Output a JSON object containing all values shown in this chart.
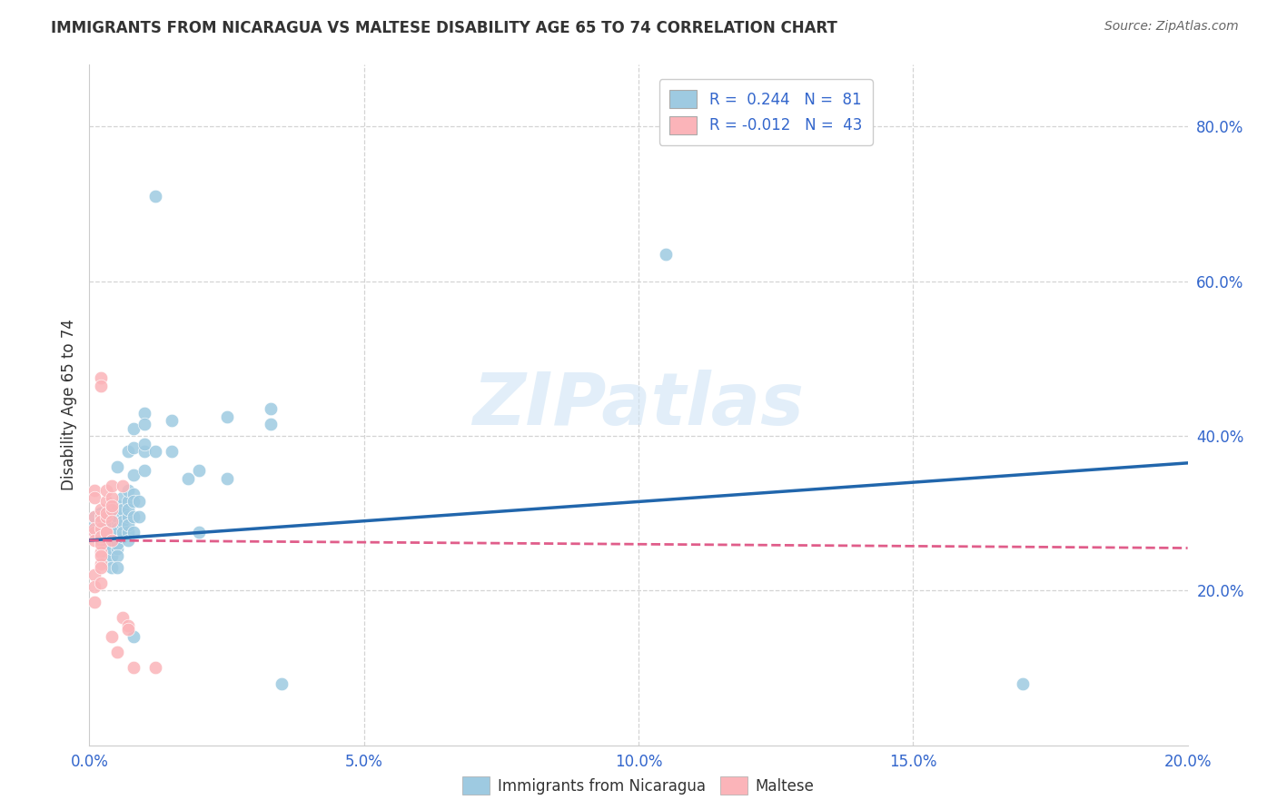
{
  "title": "IMMIGRANTS FROM NICARAGUA VS MALTESE DISABILITY AGE 65 TO 74 CORRELATION CHART",
  "source": "Source: ZipAtlas.com",
  "ylabel_label": "Disability Age 65 to 74",
  "xmin": 0.0,
  "xmax": 0.2,
  "ymin": 0.0,
  "ymax": 0.88,
  "xtick_labels": [
    "0.0%",
    "",
    "",
    "",
    "",
    "5.0%",
    "",
    "",
    "",
    "",
    "10.0%",
    "",
    "",
    "",
    "",
    "15.0%",
    "",
    "",
    "",
    "",
    "20.0%"
  ],
  "xtick_values": [
    0.0,
    0.01,
    0.02,
    0.03,
    0.04,
    0.05,
    0.06,
    0.07,
    0.08,
    0.09,
    0.1,
    0.11,
    0.12,
    0.13,
    0.14,
    0.15,
    0.16,
    0.17,
    0.18,
    0.19,
    0.2
  ],
  "ytick_labels": [
    "20.0%",
    "40.0%",
    "60.0%",
    "80.0%"
  ],
  "ytick_values": [
    0.2,
    0.4,
    0.6,
    0.8
  ],
  "watermark": "ZIPatlas",
  "blue_color": "#9ecae1",
  "pink_color": "#fbb4b9",
  "blue_line_color": "#2166ac",
  "pink_line_color": "#e05d8a",
  "blue_scatter": [
    [
      0.001,
      0.285
    ],
    [
      0.001,
      0.295
    ],
    [
      0.001,
      0.275
    ],
    [
      0.002,
      0.3
    ],
    [
      0.002,
      0.28
    ],
    [
      0.002,
      0.265
    ],
    [
      0.002,
      0.3
    ],
    [
      0.002,
      0.285
    ],
    [
      0.002,
      0.27
    ],
    [
      0.003,
      0.295
    ],
    [
      0.003,
      0.285
    ],
    [
      0.003,
      0.27
    ],
    [
      0.003,
      0.26
    ],
    [
      0.003,
      0.3
    ],
    [
      0.003,
      0.29
    ],
    [
      0.003,
      0.28
    ],
    [
      0.003,
      0.26
    ],
    [
      0.003,
      0.24
    ],
    [
      0.004,
      0.295
    ],
    [
      0.004,
      0.28
    ],
    [
      0.004,
      0.265
    ],
    [
      0.004,
      0.245
    ],
    [
      0.004,
      0.23
    ],
    [
      0.004,
      0.3
    ],
    [
      0.004,
      0.285
    ],
    [
      0.004,
      0.27
    ],
    [
      0.004,
      0.255
    ],
    [
      0.005,
      0.295
    ],
    [
      0.005,
      0.285
    ],
    [
      0.005,
      0.27
    ],
    [
      0.005,
      0.255
    ],
    [
      0.005,
      0.36
    ],
    [
      0.005,
      0.31
    ],
    [
      0.005,
      0.295
    ],
    [
      0.005,
      0.28
    ],
    [
      0.005,
      0.26
    ],
    [
      0.005,
      0.245
    ],
    [
      0.005,
      0.23
    ],
    [
      0.006,
      0.32
    ],
    [
      0.006,
      0.3
    ],
    [
      0.006,
      0.285
    ],
    [
      0.006,
      0.27
    ],
    [
      0.006,
      0.305
    ],
    [
      0.006,
      0.29
    ],
    [
      0.006,
      0.275
    ],
    [
      0.007,
      0.315
    ],
    [
      0.007,
      0.295
    ],
    [
      0.007,
      0.275
    ],
    [
      0.007,
      0.38
    ],
    [
      0.007,
      0.33
    ],
    [
      0.007,
      0.305
    ],
    [
      0.007,
      0.285
    ],
    [
      0.007,
      0.265
    ],
    [
      0.008,
      0.35
    ],
    [
      0.008,
      0.325
    ],
    [
      0.008,
      0.295
    ],
    [
      0.008,
      0.275
    ],
    [
      0.008,
      0.14
    ],
    [
      0.008,
      0.41
    ],
    [
      0.008,
      0.385
    ],
    [
      0.008,
      0.315
    ],
    [
      0.009,
      0.315
    ],
    [
      0.009,
      0.295
    ],
    [
      0.01,
      0.43
    ],
    [
      0.01,
      0.415
    ],
    [
      0.01,
      0.38
    ],
    [
      0.01,
      0.355
    ],
    [
      0.01,
      0.39
    ],
    [
      0.012,
      0.71
    ],
    [
      0.012,
      0.38
    ],
    [
      0.015,
      0.42
    ],
    [
      0.015,
      0.38
    ],
    [
      0.018,
      0.345
    ],
    [
      0.02,
      0.355
    ],
    [
      0.02,
      0.275
    ],
    [
      0.025,
      0.425
    ],
    [
      0.025,
      0.345
    ],
    [
      0.033,
      0.435
    ],
    [
      0.033,
      0.415
    ],
    [
      0.035,
      0.08
    ],
    [
      0.105,
      0.635
    ],
    [
      0.17,
      0.08
    ]
  ],
  "pink_scatter": [
    [
      0.001,
      0.33
    ],
    [
      0.001,
      0.275
    ],
    [
      0.001,
      0.32
    ],
    [
      0.001,
      0.295
    ],
    [
      0.001,
      0.28
    ],
    [
      0.001,
      0.265
    ],
    [
      0.001,
      0.22
    ],
    [
      0.001,
      0.205
    ],
    [
      0.001,
      0.185
    ],
    [
      0.002,
      0.295
    ],
    [
      0.002,
      0.28
    ],
    [
      0.002,
      0.265
    ],
    [
      0.002,
      0.25
    ],
    [
      0.002,
      0.235
    ],
    [
      0.002,
      0.21
    ],
    [
      0.002,
      0.475
    ],
    [
      0.002,
      0.465
    ],
    [
      0.002,
      0.305
    ],
    [
      0.002,
      0.29
    ],
    [
      0.002,
      0.27
    ],
    [
      0.002,
      0.26
    ],
    [
      0.002,
      0.245
    ],
    [
      0.002,
      0.23
    ],
    [
      0.003,
      0.315
    ],
    [
      0.003,
      0.295
    ],
    [
      0.003,
      0.275
    ],
    [
      0.003,
      0.33
    ],
    [
      0.003,
      0.3
    ],
    [
      0.003,
      0.275
    ],
    [
      0.004,
      0.32
    ],
    [
      0.004,
      0.305
    ],
    [
      0.004,
      0.29
    ],
    [
      0.004,
      0.265
    ],
    [
      0.004,
      0.335
    ],
    [
      0.004,
      0.31
    ],
    [
      0.004,
      0.14
    ],
    [
      0.005,
      0.12
    ],
    [
      0.006,
      0.335
    ],
    [
      0.006,
      0.165
    ],
    [
      0.007,
      0.155
    ],
    [
      0.007,
      0.15
    ],
    [
      0.008,
      0.1
    ],
    [
      0.012,
      0.1
    ]
  ],
  "blue_trend_x": [
    0.0,
    0.2
  ],
  "blue_trend_y": [
    0.265,
    0.365
  ],
  "pink_trend_x": [
    0.0,
    0.2
  ],
  "pink_trend_y": [
    0.265,
    0.255
  ],
  "grid_color": "#d0d0d0",
  "bg_color": "#ffffff",
  "tick_color": "#3366cc",
  "text_color": "#333333"
}
